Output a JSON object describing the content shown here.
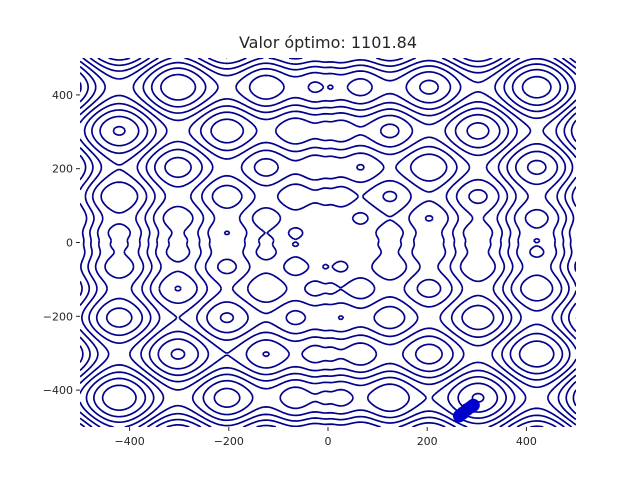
{
  "chart_data": {
    "type": "contour",
    "title": "Valor óptimo: 1101.84",
    "xlabel": "",
    "ylabel": "",
    "xlim": [
      -500,
      500
    ],
    "ylim": [
      -500,
      500
    ],
    "xticks": [
      -400,
      -200,
      0,
      200,
      400
    ],
    "yticks": [
      -400,
      -200,
      0,
      200,
      400
    ],
    "xtick_labels": [
      "−400",
      "−200",
      "0",
      "200",
      "400"
    ],
    "ytick_labels": [
      "−400",
      "−200",
      "0",
      "200",
      "400"
    ],
    "grid": false,
    "contour_color": "#00008b",
    "marker_color": "#0000cd",
    "optimum_value": 1101.84,
    "optimization_path": [
      {
        "x": 265,
        "y": -470
      },
      {
        "x": 272,
        "y": -462
      },
      {
        "x": 280,
        "y": -453
      },
      {
        "x": 288,
        "y": -446
      },
      {
        "x": 293,
        "y": -441
      }
    ]
  }
}
